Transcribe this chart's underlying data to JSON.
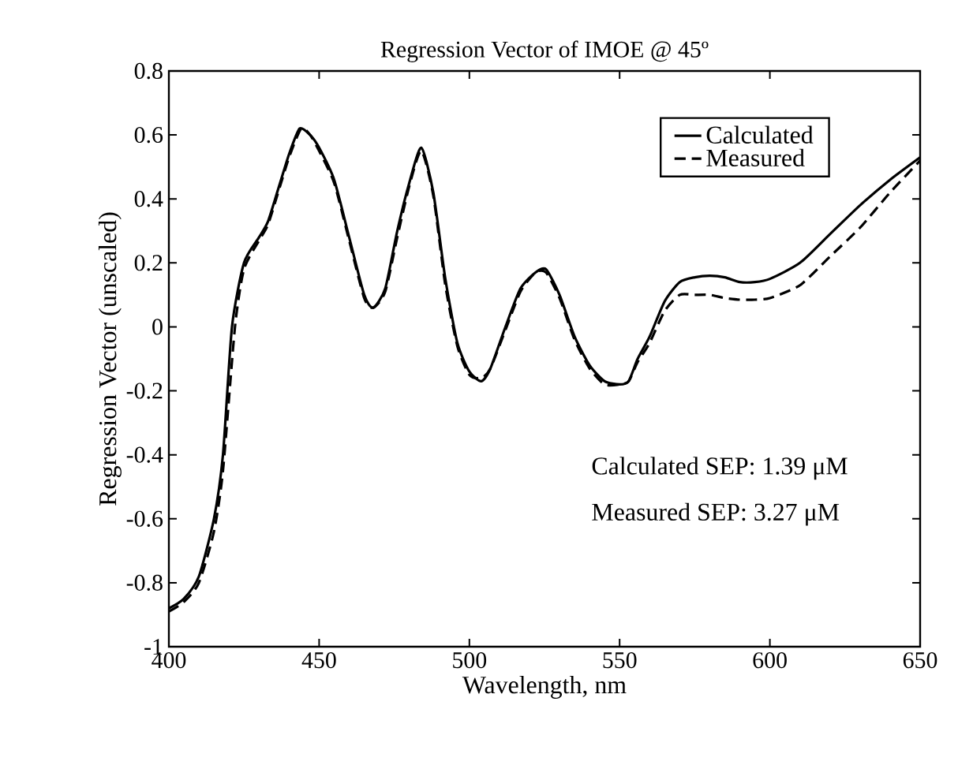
{
  "chart_data": {
    "type": "line",
    "title": "Regression Vector of IMOE @ 45º",
    "xlabel": "Wavelength, nm",
    "ylabel": "Regression Vector (unscaled)",
    "xlim": [
      400,
      650
    ],
    "ylim": [
      -1,
      0.8
    ],
    "xticks": [
      400,
      450,
      500,
      550,
      600,
      650
    ],
    "yticks": [
      -1,
      -0.8,
      -0.6,
      -0.4,
      -0.2,
      0,
      0.2,
      0.4,
      0.6,
      0.8
    ],
    "legend": "top right",
    "grid": false,
    "annotations": [
      "Calculated SEP: 1.39 μM",
      "Measured SEP: 3.27 μM"
    ],
    "series": [
      {
        "name": "Calculated",
        "color": "#000000",
        "line_style": "solid",
        "x": [
          400,
          405,
          410,
          415,
          418,
          421,
          425,
          430,
          433,
          437,
          440,
          443.5,
          447,
          450,
          455,
          460,
          465,
          468,
          472,
          476,
          480,
          484,
          488,
          492,
          496,
          500,
          504,
          507,
          512,
          517,
          522,
          525.5,
          530,
          535,
          540,
          545,
          550,
          553,
          556,
          560,
          565,
          570,
          575,
          580,
          585,
          590,
          595,
          600,
          610,
          620,
          630,
          640,
          650
        ],
        "values": [
          -0.88,
          -0.85,
          -0.78,
          -0.6,
          -0.4,
          0.0,
          0.2,
          0.28,
          0.33,
          0.45,
          0.54,
          0.62,
          0.6,
          0.56,
          0.46,
          0.28,
          0.1,
          0.06,
          0.12,
          0.3,
          0.45,
          0.56,
          0.42,
          0.15,
          -0.05,
          -0.14,
          -0.17,
          -0.13,
          0.0,
          0.12,
          0.17,
          0.18,
          0.1,
          -0.03,
          -0.12,
          -0.17,
          -0.18,
          -0.17,
          -0.1,
          -0.03,
          0.08,
          0.14,
          0.155,
          0.16,
          0.155,
          0.14,
          0.14,
          0.15,
          0.2,
          0.29,
          0.38,
          0.46,
          0.53
        ]
      },
      {
        "name": "Measured",
        "color": "#000000",
        "line_style": "dashed",
        "x": [
          400,
          405,
          410,
          415,
          418,
          422,
          425,
          430,
          433,
          437,
          440,
          444,
          447,
          450,
          455,
          460,
          465,
          468,
          472,
          476,
          480,
          484,
          488,
          492,
          496,
          500,
          504,
          507,
          512,
          517,
          522,
          525.5,
          530,
          535,
          540,
          545,
          550,
          553,
          556,
          560,
          565,
          570,
          575,
          580,
          585,
          590,
          595,
          600,
          610,
          620,
          630,
          640,
          650
        ],
        "values": [
          -0.89,
          -0.86,
          -0.8,
          -0.64,
          -0.45,
          0.0,
          0.18,
          0.27,
          0.32,
          0.44,
          0.53,
          0.62,
          0.6,
          0.55,
          0.45,
          0.27,
          0.09,
          0.06,
          0.11,
          0.28,
          0.44,
          0.55,
          0.41,
          0.13,
          -0.06,
          -0.15,
          -0.16,
          -0.13,
          -0.01,
          0.11,
          0.17,
          0.17,
          0.09,
          -0.04,
          -0.13,
          -0.18,
          -0.18,
          -0.17,
          -0.11,
          -0.05,
          0.05,
          0.1,
          0.1,
          0.1,
          0.09,
          0.085,
          0.085,
          0.09,
          0.13,
          0.22,
          0.31,
          0.42,
          0.52
        ]
      }
    ]
  }
}
